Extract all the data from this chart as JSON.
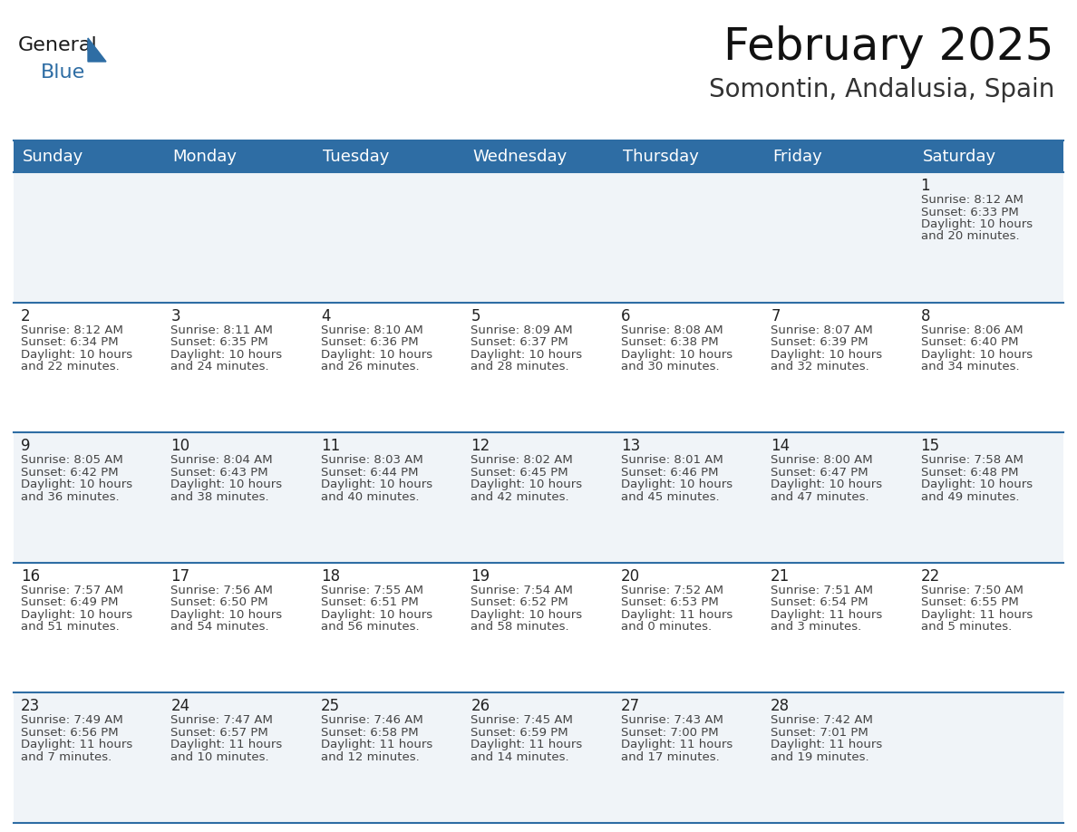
{
  "title": "February 2025",
  "subtitle": "Somontin, Andalusia, Spain",
  "header_bg": "#2E6DA4",
  "header_text_color": "#FFFFFF",
  "row_bg_light": "#F0F4F8",
  "row_bg_white": "#FFFFFF",
  "cell_line_color": "#2E6DA4",
  "day_headers": [
    "Sunday",
    "Monday",
    "Tuesday",
    "Wednesday",
    "Thursday",
    "Friday",
    "Saturday"
  ],
  "days": [
    {
      "day": 1,
      "col": 6,
      "row": 0,
      "sunrise": "8:12 AM",
      "sunset": "6:33 PM",
      "daylight_line1": "10 hours",
      "daylight_line2": "and 20 minutes."
    },
    {
      "day": 2,
      "col": 0,
      "row": 1,
      "sunrise": "8:12 AM",
      "sunset": "6:34 PM",
      "daylight_line1": "10 hours",
      "daylight_line2": "and 22 minutes."
    },
    {
      "day": 3,
      "col": 1,
      "row": 1,
      "sunrise": "8:11 AM",
      "sunset": "6:35 PM",
      "daylight_line1": "10 hours",
      "daylight_line2": "and 24 minutes."
    },
    {
      "day": 4,
      "col": 2,
      "row": 1,
      "sunrise": "8:10 AM",
      "sunset": "6:36 PM",
      "daylight_line1": "10 hours",
      "daylight_line2": "and 26 minutes."
    },
    {
      "day": 5,
      "col": 3,
      "row": 1,
      "sunrise": "8:09 AM",
      "sunset": "6:37 PM",
      "daylight_line1": "10 hours",
      "daylight_line2": "and 28 minutes."
    },
    {
      "day": 6,
      "col": 4,
      "row": 1,
      "sunrise": "8:08 AM",
      "sunset": "6:38 PM",
      "daylight_line1": "10 hours",
      "daylight_line2": "and 30 minutes."
    },
    {
      "day": 7,
      "col": 5,
      "row": 1,
      "sunrise": "8:07 AM",
      "sunset": "6:39 PM",
      "daylight_line1": "10 hours",
      "daylight_line2": "and 32 minutes."
    },
    {
      "day": 8,
      "col": 6,
      "row": 1,
      "sunrise": "8:06 AM",
      "sunset": "6:40 PM",
      "daylight_line1": "10 hours",
      "daylight_line2": "and 34 minutes."
    },
    {
      "day": 9,
      "col": 0,
      "row": 2,
      "sunrise": "8:05 AM",
      "sunset": "6:42 PM",
      "daylight_line1": "10 hours",
      "daylight_line2": "and 36 minutes."
    },
    {
      "day": 10,
      "col": 1,
      "row": 2,
      "sunrise": "8:04 AM",
      "sunset": "6:43 PM",
      "daylight_line1": "10 hours",
      "daylight_line2": "and 38 minutes."
    },
    {
      "day": 11,
      "col": 2,
      "row": 2,
      "sunrise": "8:03 AM",
      "sunset": "6:44 PM",
      "daylight_line1": "10 hours",
      "daylight_line2": "and 40 minutes."
    },
    {
      "day": 12,
      "col": 3,
      "row": 2,
      "sunrise": "8:02 AM",
      "sunset": "6:45 PM",
      "daylight_line1": "10 hours",
      "daylight_line2": "and 42 minutes."
    },
    {
      "day": 13,
      "col": 4,
      "row": 2,
      "sunrise": "8:01 AM",
      "sunset": "6:46 PM",
      "daylight_line1": "10 hours",
      "daylight_line2": "and 45 minutes."
    },
    {
      "day": 14,
      "col": 5,
      "row": 2,
      "sunrise": "8:00 AM",
      "sunset": "6:47 PM",
      "daylight_line1": "10 hours",
      "daylight_line2": "and 47 minutes."
    },
    {
      "day": 15,
      "col": 6,
      "row": 2,
      "sunrise": "7:58 AM",
      "sunset": "6:48 PM",
      "daylight_line1": "10 hours",
      "daylight_line2": "and 49 minutes."
    },
    {
      "day": 16,
      "col": 0,
      "row": 3,
      "sunrise": "7:57 AM",
      "sunset": "6:49 PM",
      "daylight_line1": "10 hours",
      "daylight_line2": "and 51 minutes."
    },
    {
      "day": 17,
      "col": 1,
      "row": 3,
      "sunrise": "7:56 AM",
      "sunset": "6:50 PM",
      "daylight_line1": "10 hours",
      "daylight_line2": "and 54 minutes."
    },
    {
      "day": 18,
      "col": 2,
      "row": 3,
      "sunrise": "7:55 AM",
      "sunset": "6:51 PM",
      "daylight_line1": "10 hours",
      "daylight_line2": "and 56 minutes."
    },
    {
      "day": 19,
      "col": 3,
      "row": 3,
      "sunrise": "7:54 AM",
      "sunset": "6:52 PM",
      "daylight_line1": "10 hours",
      "daylight_line2": "and 58 minutes."
    },
    {
      "day": 20,
      "col": 4,
      "row": 3,
      "sunrise": "7:52 AM",
      "sunset": "6:53 PM",
      "daylight_line1": "11 hours",
      "daylight_line2": "and 0 minutes."
    },
    {
      "day": 21,
      "col": 5,
      "row": 3,
      "sunrise": "7:51 AM",
      "sunset": "6:54 PM",
      "daylight_line1": "11 hours",
      "daylight_line2": "and 3 minutes."
    },
    {
      "day": 22,
      "col": 6,
      "row": 3,
      "sunrise": "7:50 AM",
      "sunset": "6:55 PM",
      "daylight_line1": "11 hours",
      "daylight_line2": "and 5 minutes."
    },
    {
      "day": 23,
      "col": 0,
      "row": 4,
      "sunrise": "7:49 AM",
      "sunset": "6:56 PM",
      "daylight_line1": "11 hours",
      "daylight_line2": "and 7 minutes."
    },
    {
      "day": 24,
      "col": 1,
      "row": 4,
      "sunrise": "7:47 AM",
      "sunset": "6:57 PM",
      "daylight_line1": "11 hours",
      "daylight_line2": "and 10 minutes."
    },
    {
      "day": 25,
      "col": 2,
      "row": 4,
      "sunrise": "7:46 AM",
      "sunset": "6:58 PM",
      "daylight_line1": "11 hours",
      "daylight_line2": "and 12 minutes."
    },
    {
      "day": 26,
      "col": 3,
      "row": 4,
      "sunrise": "7:45 AM",
      "sunset": "6:59 PM",
      "daylight_line1": "11 hours",
      "daylight_line2": "and 14 minutes."
    },
    {
      "day": 27,
      "col": 4,
      "row": 4,
      "sunrise": "7:43 AM",
      "sunset": "7:00 PM",
      "daylight_line1": "11 hours",
      "daylight_line2": "and 17 minutes."
    },
    {
      "day": 28,
      "col": 5,
      "row": 4,
      "sunrise": "7:42 AM",
      "sunset": "7:01 PM",
      "daylight_line1": "11 hours",
      "daylight_line2": "and 19 minutes."
    }
  ],
  "num_rows": 5,
  "num_cols": 7,
  "logo_color1": "#1a1a1a",
  "logo_color2": "#2E6DA4",
  "title_fontsize": 36,
  "subtitle_fontsize": 20,
  "header_fontsize": 13,
  "day_num_fontsize": 12,
  "info_fontsize": 9.5
}
